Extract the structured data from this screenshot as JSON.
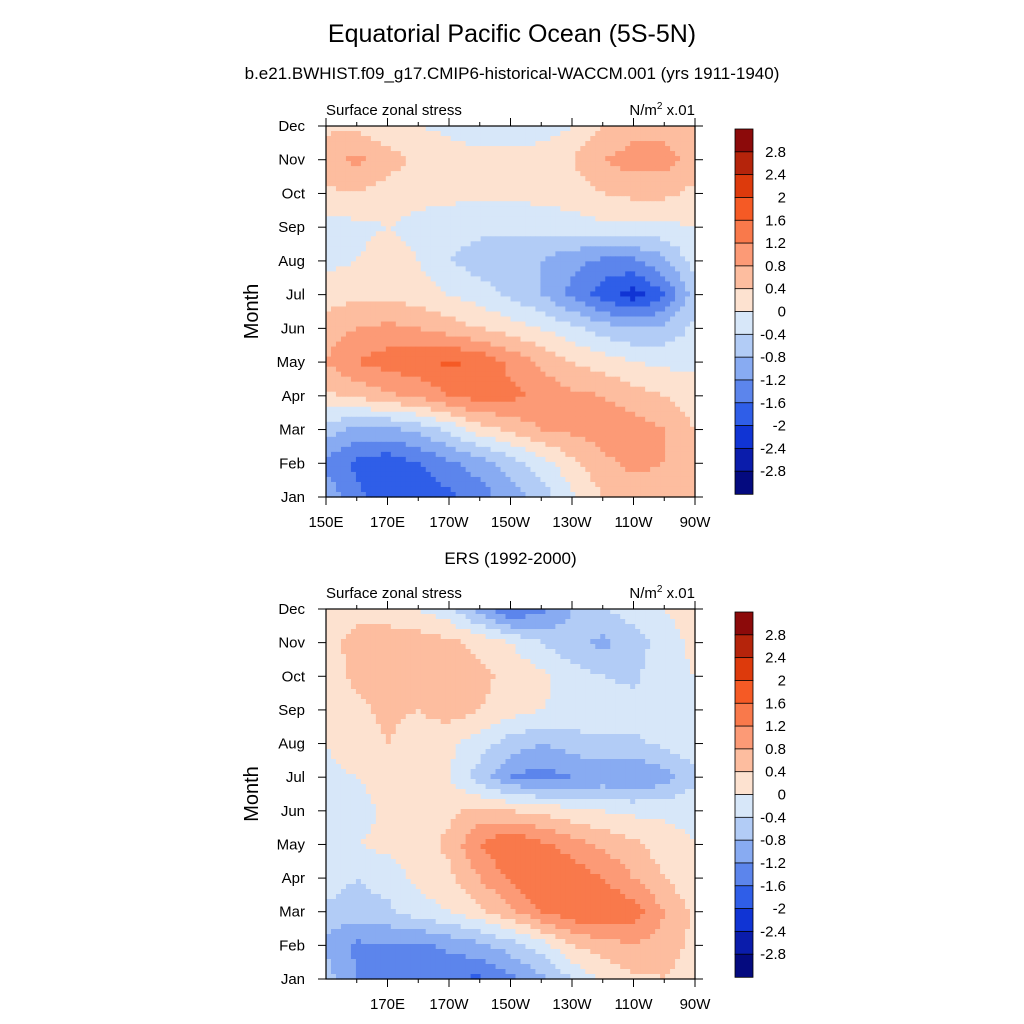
{
  "figure": {
    "title": "Equatorial Pacific Ocean (5S-5N)",
    "subtitle": "b.e21.BWHIST.f09_g17.CMIP6-historical-WACCM.001 (yrs 1911-1940)"
  },
  "colorscale": {
    "levels": [
      "2.8",
      "2.4",
      "2",
      "1.6",
      "1.2",
      "0.8",
      "0.4",
      "0",
      "-0.4",
      "-0.8",
      "-1.2",
      "-1.6",
      "-2",
      "-2.4",
      "-2.8"
    ],
    "colors": [
      "#8c0a0a",
      "#b5240b",
      "#dd3a0c",
      "#f55a25",
      "#f9794b",
      "#fc9a76",
      "#fdbd9f",
      "#fde2d0",
      "#d7e7f9",
      "#b2ccf6",
      "#88abf2",
      "#5c85ec",
      "#2f5ee8",
      "#1034d4",
      "#0a1cab",
      "#040a7f"
    ]
  },
  "chart_data": [
    {
      "type": "heatmap",
      "title": "",
      "left_label": "Surface zonal stress",
      "units_label": "N/m² x.01",
      "xlabel": "",
      "ylabel": "Month",
      "x_tick_labels": [
        "150E",
        "170E",
        "170W",
        "150W",
        "130W",
        "110W",
        "90W"
      ],
      "y_tick_labels": [
        "Jan",
        "Feb",
        "Mar",
        "Apr",
        "May",
        "Jun",
        "Jul",
        "Aug",
        "Sep",
        "Oct",
        "Nov",
        "Dec"
      ],
      "x_range": [
        "150E",
        "90W"
      ],
      "y_range": [
        "Jan",
        "Dec"
      ],
      "levels": [
        -2.8,
        -2.4,
        -2.0,
        -1.6,
        -1.2,
        -0.8,
        -0.4,
        0,
        0.4,
        0.8,
        1.2,
        1.6,
        2.0,
        2.4,
        2.8
      ],
      "x_values": [
        "150E",
        "160E",
        "170E",
        "180",
        "170W",
        "160W",
        "150W",
        "140W",
        "130W",
        "120W",
        "110W",
        "100W",
        "90W"
      ],
      "y_values": [
        "Jan",
        "Feb",
        "Mar",
        "Apr",
        "May",
        "Jun",
        "Jul",
        "Aug",
        "Sep",
        "Oct",
        "Nov",
        "Dec"
      ],
      "z": [
        [
          -0.9,
          -1.5,
          -1.8,
          -1.9,
          -1.7,
          -1.4,
          -1.0,
          -0.6,
          -0.1,
          0.4,
          0.6,
          0.6,
          0.4
        ],
        [
          -1.3,
          -1.7,
          -1.9,
          -1.6,
          -1.3,
          -1.0,
          -0.6,
          -0.2,
          0.3,
          0.7,
          0.9,
          0.8,
          0.5
        ],
        [
          -0.6,
          -0.9,
          -0.9,
          -0.7,
          -0.3,
          0.2,
          0.5,
          0.8,
          0.9,
          1.0,
          1.0,
          0.8,
          0.4
        ],
        [
          0.3,
          0.5,
          0.7,
          0.9,
          1.2,
          1.4,
          1.3,
          1.1,
          0.9,
          0.8,
          0.6,
          0.4,
          0.2
        ],
        [
          0.8,
          1.2,
          1.4,
          1.5,
          1.7,
          1.5,
          1.1,
          0.7,
          0.4,
          0.2,
          0.0,
          -0.1,
          -0.1
        ],
        [
          0.6,
          0.8,
          0.9,
          0.8,
          0.6,
          0.4,
          0.2,
          0.0,
          -0.3,
          -0.6,
          -0.8,
          -0.7,
          -0.3
        ],
        [
          0.2,
          0.3,
          0.3,
          0.2,
          0.0,
          -0.2,
          -0.5,
          -0.8,
          -1.3,
          -1.8,
          -2.2,
          -1.6,
          -0.6
        ],
        [
          -0.1,
          0.0,
          0.2,
          0.0,
          -0.4,
          -0.6,
          -0.7,
          -0.8,
          -1.1,
          -1.3,
          -1.3,
          -0.9,
          -0.2
        ],
        [
          -0.2,
          -0.1,
          0.0,
          -0.1,
          -0.2,
          -0.3,
          -0.3,
          -0.2,
          -0.2,
          -0.1,
          -0.1,
          -0.1,
          0.0
        ],
        [
          0.3,
          0.4,
          0.2,
          0.1,
          0.1,
          0.1,
          0.1,
          0.1,
          0.2,
          0.4,
          0.5,
          0.5,
          0.3
        ],
        [
          0.7,
          0.9,
          0.6,
          0.3,
          0.2,
          0.2,
          0.2,
          0.3,
          0.4,
          0.8,
          1.0,
          1.0,
          0.6
        ],
        [
          0.3,
          0.3,
          0.1,
          0.0,
          -0.1,
          -0.3,
          -0.4,
          -0.3,
          0.0,
          0.4,
          0.6,
          0.6,
          0.4
        ]
      ]
    },
    {
      "type": "heatmap",
      "title": "ERS (1992-2000)",
      "left_label": "Surface zonal stress",
      "units_label": "N/m² x.01",
      "xlabel": "",
      "ylabel": "Month",
      "x_tick_labels": [
        "170E",
        "170W",
        "150W",
        "130W",
        "110W",
        "90W"
      ],
      "y_tick_labels": [
        "Jan",
        "Feb",
        "Mar",
        "Apr",
        "May",
        "Jun",
        "Jul",
        "Aug",
        "Sep",
        "Oct",
        "Nov",
        "Dec"
      ],
      "x_range": [
        "150E",
        "90W"
      ],
      "y_range": [
        "Jan",
        "Dec"
      ],
      "levels": [
        -2.8,
        -2.4,
        -2.0,
        -1.6,
        -1.2,
        -0.8,
        -0.4,
        0,
        0.4,
        0.8,
        1.2,
        1.6,
        2.0,
        2.4,
        2.8
      ],
      "x_values": [
        "150E",
        "160E",
        "170E",
        "180",
        "170W",
        "160W",
        "150W",
        "140W",
        "130W",
        "120W",
        "110W",
        "100W",
        "90W"
      ],
      "y_values": [
        "Jan",
        "Feb",
        "Mar",
        "Apr",
        "May",
        "Jun",
        "Jul",
        "Aug",
        "Sep",
        "Oct",
        "Nov",
        "Dec"
      ],
      "z": [
        [
          -0.6,
          -1.2,
          -1.4,
          -1.6,
          -1.5,
          -1.7,
          -1.3,
          -0.9,
          -0.4,
          0.1,
          0.3,
          0.4,
          0.2
        ],
        [
          -0.9,
          -1.3,
          -1.2,
          -1.3,
          -1.1,
          -0.9,
          -0.6,
          -0.2,
          0.4,
          0.6,
          0.8,
          0.6,
          0.3
        ],
        [
          -0.5,
          -0.6,
          -0.5,
          -0.2,
          0.0,
          0.3,
          0.7,
          1.2,
          1.5,
          1.6,
          1.4,
          0.8,
          0.3
        ],
        [
          -0.2,
          -0.4,
          -0.2,
          0.1,
          0.3,
          0.8,
          1.3,
          1.6,
          1.5,
          1.2,
          0.8,
          0.4,
          0.1
        ],
        [
          -0.1,
          0.0,
          0.1,
          0.2,
          0.5,
          1.2,
          1.6,
          1.3,
          1.0,
          0.7,
          0.5,
          0.2,
          0.0
        ],
        [
          -0.3,
          -0.2,
          0.1,
          0.2,
          0.3,
          0.5,
          0.4,
          0.3,
          0.1,
          0.0,
          -0.1,
          -0.1,
          -0.1
        ],
        [
          -0.1,
          0.0,
          0.2,
          0.1,
          0.0,
          -0.6,
          -1.2,
          -1.4,
          -1.2,
          -1.1,
          -1.2,
          -1.0,
          -0.5
        ],
        [
          0.0,
          0.2,
          0.4,
          0.2,
          0.1,
          -0.2,
          -0.6,
          -0.8,
          -0.6,
          -0.5,
          -0.5,
          -0.3,
          -0.1
        ],
        [
          0.1,
          0.3,
          0.5,
          0.4,
          0.6,
          0.4,
          0.2,
          0.0,
          -0.1,
          -0.1,
          -0.2,
          -0.2,
          0.0
        ],
        [
          0.2,
          0.5,
          0.5,
          0.6,
          0.5,
          0.5,
          0.3,
          0.1,
          -0.2,
          -0.4,
          -0.5,
          -0.1,
          0.0
        ],
        [
          0.3,
          0.5,
          0.6,
          0.6,
          0.5,
          0.3,
          0.0,
          -0.4,
          -0.7,
          -0.9,
          -0.6,
          -0.2,
          0.1
        ],
        [
          0.3,
          0.3,
          0.2,
          0.0,
          -0.3,
          -1.0,
          -1.7,
          -1.3,
          -0.8,
          -0.4,
          -0.2,
          0.0,
          0.2
        ]
      ]
    }
  ]
}
